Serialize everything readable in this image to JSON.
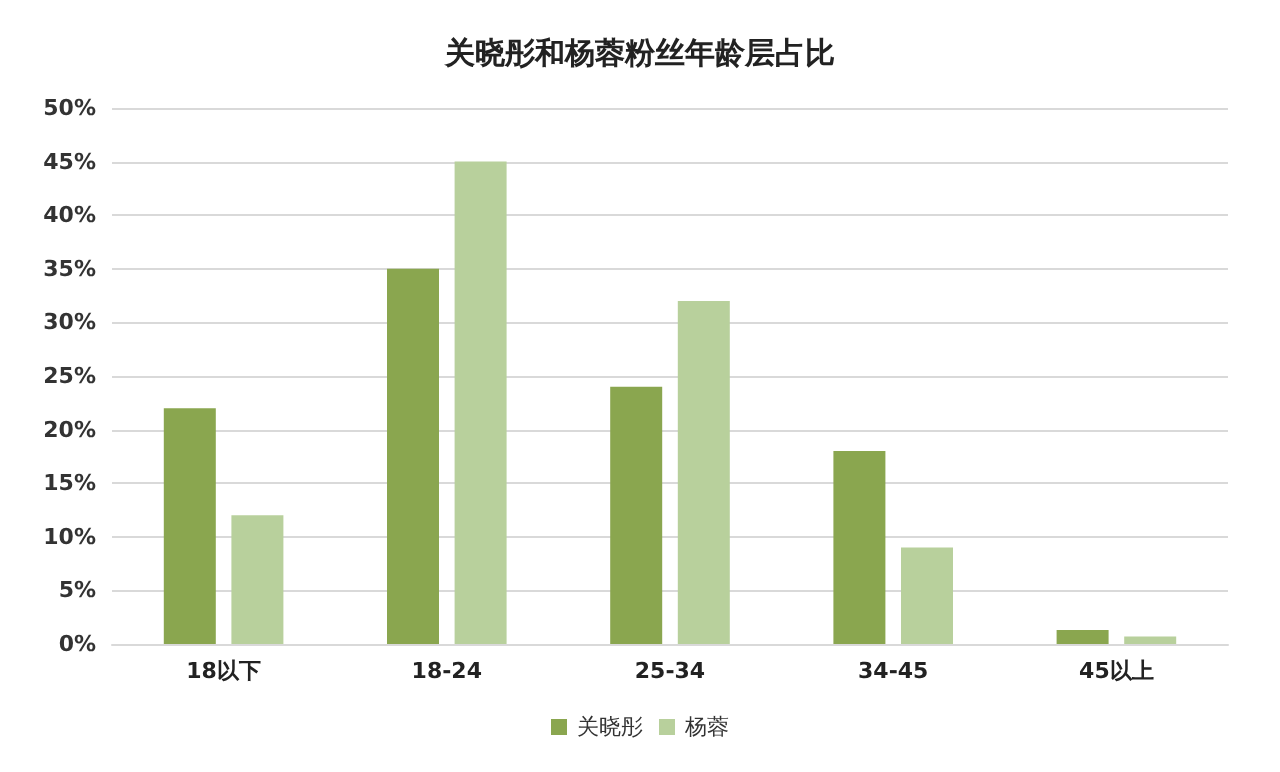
{
  "chart_data": {
    "type": "bar",
    "title": "关晓彤和杨蓉粉丝年龄层占比",
    "categories": [
      "18以下",
      "18-24",
      "25-34",
      "34-45",
      "45以上"
    ],
    "series": [
      {
        "name": "关晓彤",
        "color": "#8aa64f",
        "values": [
          22,
          35,
          24,
          18,
          1.3
        ]
      },
      {
        "name": "杨蓉",
        "color": "#b8d09c",
        "values": [
          12,
          45,
          32,
          9,
          0.7
        ]
      }
    ],
    "ylim": [
      0,
      50
    ],
    "yticks": [
      {
        "value": 0,
        "label": "0%"
      },
      {
        "value": 5,
        "label": "5%"
      },
      {
        "value": 10,
        "label": "10%"
      },
      {
        "value": 15,
        "label": "15%"
      },
      {
        "value": 20,
        "label": "20%"
      },
      {
        "value": 25,
        "label": "25%"
      },
      {
        "value": 30,
        "label": "30%"
      },
      {
        "value": 35,
        "label": "35%"
      },
      {
        "value": 40,
        "label": "40%"
      },
      {
        "value": 45,
        "label": "45%"
      },
      {
        "value": 50,
        "label": "50%"
      }
    ],
    "grid": "y",
    "legend": "bottom"
  }
}
